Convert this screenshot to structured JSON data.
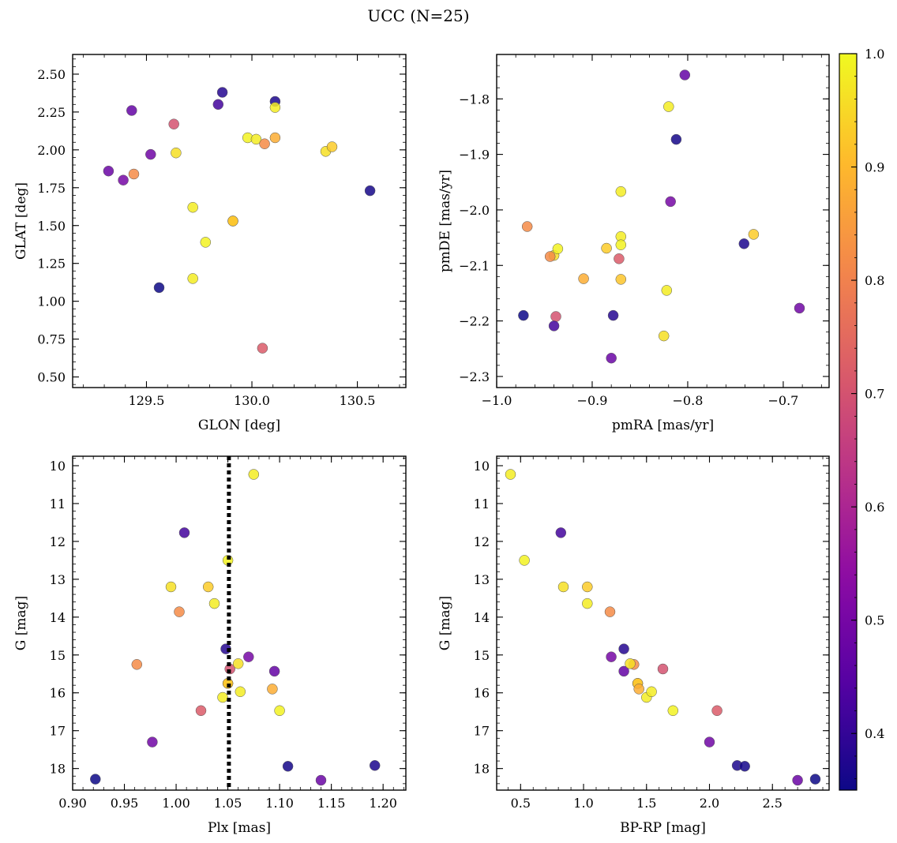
{
  "chart_data": {
    "title": "UCC (N=25)",
    "colorbar": {
      "colormap": "plasma",
      "range": [
        0.35,
        1.0
      ],
      "ticks": [
        0.4,
        0.5,
        0.6,
        0.7,
        0.8,
        0.9,
        1.0
      ],
      "tick_labels": [
        "0.4",
        "0.5",
        "0.6",
        "0.7",
        "0.8",
        "0.9",
        "1.0"
      ]
    },
    "stars": [
      {
        "glon": 129.32,
        "glat": 1.86,
        "pmra": -0.88,
        "pmde": -2.267,
        "plx": 1.14,
        "g": 18.31,
        "bprp": 2.7,
        "p": 0.48
      },
      {
        "glon": 129.39,
        "glat": 1.8,
        "pmra": -0.818,
        "pmde": -1.985,
        "plx": 1.07,
        "g": 15.05,
        "bprp": 1.22,
        "p": 0.5
      },
      {
        "glon": 129.43,
        "glat": 2.26,
        "pmra": -0.803,
        "pmde": -1.757,
        "plx": 1.095,
        "g": 15.43,
        "bprp": 1.32,
        "p": 0.47
      },
      {
        "glon": 129.44,
        "glat": 1.84,
        "pmra": -0.968,
        "pmde": -2.03,
        "plx": 0.962,
        "g": 15.25,
        "bprp": 1.4,
        "p": 0.82
      },
      {
        "glon": 129.52,
        "glat": 1.97,
        "pmra": -0.683,
        "pmde": -2.177,
        "plx": 0.977,
        "g": 17.3,
        "bprp": 2.0,
        "p": 0.49
      },
      {
        "glon": 129.56,
        "glat": 1.09,
        "pmra": -0.972,
        "pmde": -2.19,
        "plx": 0.922,
        "g": 18.28,
        "bprp": 2.84,
        "p": 0.35
      },
      {
        "glon": 129.63,
        "glat": 2.17,
        "pmra": -0.938,
        "pmde": -2.192,
        "plx": 1.052,
        "g": 15.37,
        "bprp": 1.63,
        "p": 0.7
      },
      {
        "glon": 129.64,
        "glat": 1.98,
        "pmra": -0.94,
        "pmde": -2.082,
        "plx": 1.06,
        "g": 15.23,
        "bprp": 1.37,
        "p": 0.96
      },
      {
        "glon": 129.72,
        "glat": 1.15,
        "pmra": -0.87,
        "pmde": -1.967,
        "plx": 1.075,
        "g": 10.23,
        "bprp": 0.42,
        "p": 0.98
      },
      {
        "glon": 129.72,
        "glat": 1.62,
        "pmra": -0.87,
        "pmde": -2.048,
        "plx": 1.037,
        "g": 13.64,
        "bprp": 1.03,
        "p": 0.98
      },
      {
        "glon": 129.78,
        "glat": 1.39,
        "pmra": -0.87,
        "pmde": -2.063,
        "plx": 1.1,
        "g": 16.47,
        "bprp": 1.71,
        "p": 0.99
      },
      {
        "glon": 129.84,
        "glat": 2.3,
        "pmra": -0.94,
        "pmde": -2.209,
        "plx": 1.008,
        "g": 11.77,
        "bprp": 0.82,
        "p": 0.42
      },
      {
        "glon": 129.86,
        "glat": 2.38,
        "pmra": -0.878,
        "pmde": -2.19,
        "plx": 1.048,
        "g": 14.84,
        "bprp": 1.32,
        "p": 0.38
      },
      {
        "glon": 129.91,
        "glat": 1.53,
        "pmra": -0.885,
        "pmde": -2.069,
        "plx": 1.05,
        "g": 15.75,
        "bprp": 1.43,
        "p": 0.93
      },
      {
        "glon": 129.91,
        "glat": 1.53,
        "pmra": -0.87,
        "pmde": -2.125,
        "plx": 1.05,
        "g": 15.75,
        "bprp": 1.43,
        "p": 0.92
      },
      {
        "glon": 129.98,
        "glat": 2.08,
        "pmra": -0.936,
        "pmde": -2.07,
        "plx": 1.05,
        "g": 12.5,
        "bprp": 0.53,
        "p": 0.99
      },
      {
        "glon": 130.02,
        "glat": 2.07,
        "pmra": -0.822,
        "pmde": -2.145,
        "plx": 1.045,
        "g": 16.12,
        "bprp": 1.5,
        "p": 0.98
      },
      {
        "glon": 130.05,
        "glat": 0.69,
        "pmra": -0.872,
        "pmde": -2.088,
        "plx": 1.024,
        "g": 16.47,
        "bprp": 2.06,
        "p": 0.72
      },
      {
        "glon": 130.06,
        "glat": 2.04,
        "pmra": -0.944,
        "pmde": -2.084,
        "plx": 1.003,
        "g": 13.86,
        "bprp": 1.21,
        "p": 0.82
      },
      {
        "glon": 130.11,
        "glat": 2.32,
        "pmra": -0.741,
        "pmde": -2.061,
        "plx": 1.192,
        "g": 17.92,
        "bprp": 2.22,
        "p": 0.37
      },
      {
        "glon": 130.11,
        "glat": 2.28,
        "pmra": -0.82,
        "pmde": -1.814,
        "plx": 1.062,
        "g": 15.97,
        "bprp": 1.54,
        "p": 0.98
      },
      {
        "glon": 130.11,
        "glat": 2.08,
        "pmra": -0.909,
        "pmde": -2.124,
        "plx": 1.093,
        "g": 15.9,
        "bprp": 1.44,
        "p": 0.88
      },
      {
        "glon": 130.35,
        "glat": 1.99,
        "pmra": -0.825,
        "pmde": -2.227,
        "plx": 0.995,
        "g": 13.2,
        "bprp": 0.84,
        "p": 0.96
      },
      {
        "glon": 130.38,
        "glat": 2.02,
        "pmra": -0.731,
        "pmde": -2.044,
        "plx": 1.031,
        "g": 13.2,
        "bprp": 1.03,
        "p": 0.93
      },
      {
        "glon": 130.56,
        "glat": 1.73,
        "pmra": -0.812,
        "pmde": -1.873,
        "plx": 1.108,
        "g": 17.94,
        "bprp": 2.28,
        "p": 0.36
      }
    ],
    "panels": [
      {
        "name": "glon-glat",
        "x_field": "glon",
        "y_field": "glat",
        "xlabel": "GLON [deg]",
        "ylabel": "GLAT [deg]",
        "xlim": [
          129.15,
          130.73
        ],
        "ylim": [
          0.43,
          2.63
        ],
        "y_inverted": false,
        "xticks": [
          129.5,
          130.0,
          130.5
        ],
        "xtick_labels": [
          "129.5",
          "130.0",
          "130.5"
        ],
        "yticks": [
          0.5,
          0.75,
          1.0,
          1.25,
          1.5,
          1.75,
          2.0,
          2.25,
          2.5
        ],
        "ytick_labels": [
          "0.50",
          "0.75",
          "1.00",
          "1.25",
          "1.50",
          "1.75",
          "2.00",
          "2.25",
          "2.50"
        ]
      },
      {
        "name": "pmra-pmde",
        "x_field": "pmra",
        "y_field": "pmde",
        "xlabel": "pmRA [mas/yr]",
        "ylabel": "pmDE [mas/yr]",
        "xlim": [
          -1.0,
          -0.652
        ],
        "ylim": [
          -2.32,
          -1.72
        ],
        "y_inverted": false,
        "xticks": [
          -1.0,
          -0.9,
          -0.8,
          -0.7
        ],
        "xtick_labels": [
          "−1.0",
          "−0.9",
          "−0.8",
          "−0.7"
        ],
        "yticks": [
          -2.3,
          -2.2,
          -2.1,
          -2.0,
          -1.9,
          -1.8
        ],
        "ytick_labels": [
          "−2.3",
          "−2.2",
          "−2.1",
          "−2.0",
          "−1.9",
          "−1.8"
        ]
      },
      {
        "name": "plx-g",
        "x_field": "plx",
        "y_field": "g",
        "xlabel": "Plx [mas]",
        "ylabel": "G [mag]",
        "xlim": [
          0.9,
          1.222
        ],
        "ylim": [
          18.57,
          9.75
        ],
        "y_inverted": true,
        "xticks": [
          0.9,
          0.95,
          1.0,
          1.05,
          1.1,
          1.15,
          1.2
        ],
        "xtick_labels": [
          "0.90",
          "0.95",
          "1.00",
          "1.05",
          "1.10",
          "1.15",
          "1.20"
        ],
        "yticks": [
          10,
          11,
          12,
          13,
          14,
          15,
          16,
          17,
          18
        ],
        "ytick_labels": [
          "10",
          "11",
          "12",
          "13",
          "14",
          "15",
          "16",
          "17",
          "18"
        ],
        "vline": 1.051
      },
      {
        "name": "bprp-g",
        "x_field": "bprp",
        "y_field": "g",
        "xlabel": "BP-RP [mag]",
        "ylabel": "G [mag]",
        "xlim": [
          0.31,
          2.95
        ],
        "ylim": [
          18.57,
          9.75
        ],
        "y_inverted": true,
        "xticks": [
          0.5,
          1.0,
          1.5,
          2.0,
          2.5
        ],
        "xtick_labels": [
          "0.5",
          "1.0",
          "1.5",
          "2.0",
          "2.5"
        ],
        "yticks": [
          10,
          11,
          12,
          13,
          14,
          15,
          16,
          17,
          18
        ],
        "ytick_labels": [
          "10",
          "11",
          "12",
          "13",
          "14",
          "15",
          "16",
          "17",
          "18"
        ]
      }
    ]
  }
}
